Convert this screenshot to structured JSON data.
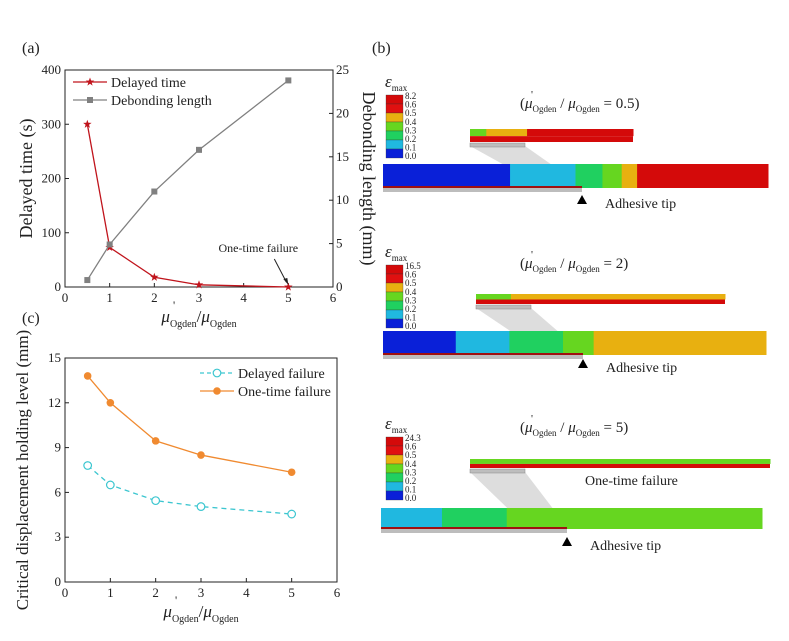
{
  "panel_labels": {
    "a": "(a)",
    "b": "(b)",
    "c": "(c)"
  },
  "chart_data": [
    {
      "id": "a",
      "type": "line",
      "xlabel_main": "μ'",
      "xlabel": "μ'Ogden/μOgden",
      "xlabel_parts": {
        "mu": "μ",
        "sub": "Ogden",
        "slash": "/",
        "prime": "'"
      },
      "ylabel": "Delayed time (s)",
      "y2label": "Debonding length (mm)",
      "xlim": [
        0,
        6
      ],
      "ylim": [
        0,
        400
      ],
      "y2lim": [
        0,
        25
      ],
      "xticks": [
        "0",
        "1",
        "2",
        "3",
        "4",
        "5",
        "6"
      ],
      "yticks": [
        "0",
        "100",
        "200",
        "300",
        "400"
      ],
      "y2ticks": [
        "0",
        "5",
        "10",
        "15",
        "20",
        "25"
      ],
      "legend_position": "top-left",
      "series": [
        {
          "name": "Delayed time",
          "axis": "left",
          "marker": "star",
          "color": "#c0141c",
          "x": [
            0.5,
            1,
            2,
            3,
            5
          ],
          "y": [
            300,
            73,
            18,
            4,
            0
          ]
        },
        {
          "name": "Debonding length",
          "axis": "right",
          "marker": "square",
          "color": "#808080",
          "x": [
            0.5,
            1,
            2,
            3,
            5
          ],
          "y": [
            0.8,
            4.9,
            11,
            15.8,
            23.8
          ]
        }
      ],
      "annotation": {
        "text": "One-time failure",
        "x": 5,
        "y": 0
      }
    },
    {
      "id": "c",
      "type": "line",
      "xlabel": "μ'Ogden/μOgden",
      "ylabel": "Critical displacement holding level (mm)",
      "xlim": [
        0,
        6
      ],
      "ylim": [
        0,
        15
      ],
      "xticks": [
        "0",
        "1",
        "2",
        "3",
        "4",
        "5",
        "6"
      ],
      "yticks": [
        "0",
        "3",
        "6",
        "9",
        "12",
        "15"
      ],
      "legend_position": "top-right",
      "series": [
        {
          "name": "Delayed failure",
          "marker": "open-circle",
          "dash": true,
          "color": "#3cc6d0",
          "x": [
            0.5,
            1,
            2,
            3,
            5
          ],
          "y": [
            7.8,
            6.5,
            5.45,
            5.05,
            4.55
          ]
        },
        {
          "name": "One-time failure",
          "marker": "filled-circle",
          "dash": false,
          "color": "#f08a30",
          "x": [
            0.5,
            1,
            2,
            3,
            5
          ],
          "y": [
            13.8,
            12.0,
            9.45,
            8.5,
            7.35
          ]
        }
      ]
    }
  ],
  "contours": {
    "legend_title": "εmax",
    "legend_colors": [
      "#d40a0a",
      "#e01010",
      "#e8b010",
      "#66d620",
      "#20d060",
      "#20b8e0",
      "#0a20d8"
    ],
    "levels_common": [
      "0.6",
      "0.5",
      "0.4",
      "0.3",
      "0.2",
      "0.1",
      "0.0"
    ],
    "cases": [
      {
        "ratio": "0.5",
        "max": "8.2",
        "tip_label": "Adhesive tip",
        "note": ""
      },
      {
        "ratio": "2",
        "max": "16.5",
        "tip_label": "Adhesive tip",
        "note": ""
      },
      {
        "ratio": "5",
        "max": "24.3",
        "tip_label": "Adhesive tip",
        "note": "One-time failure"
      }
    ]
  }
}
